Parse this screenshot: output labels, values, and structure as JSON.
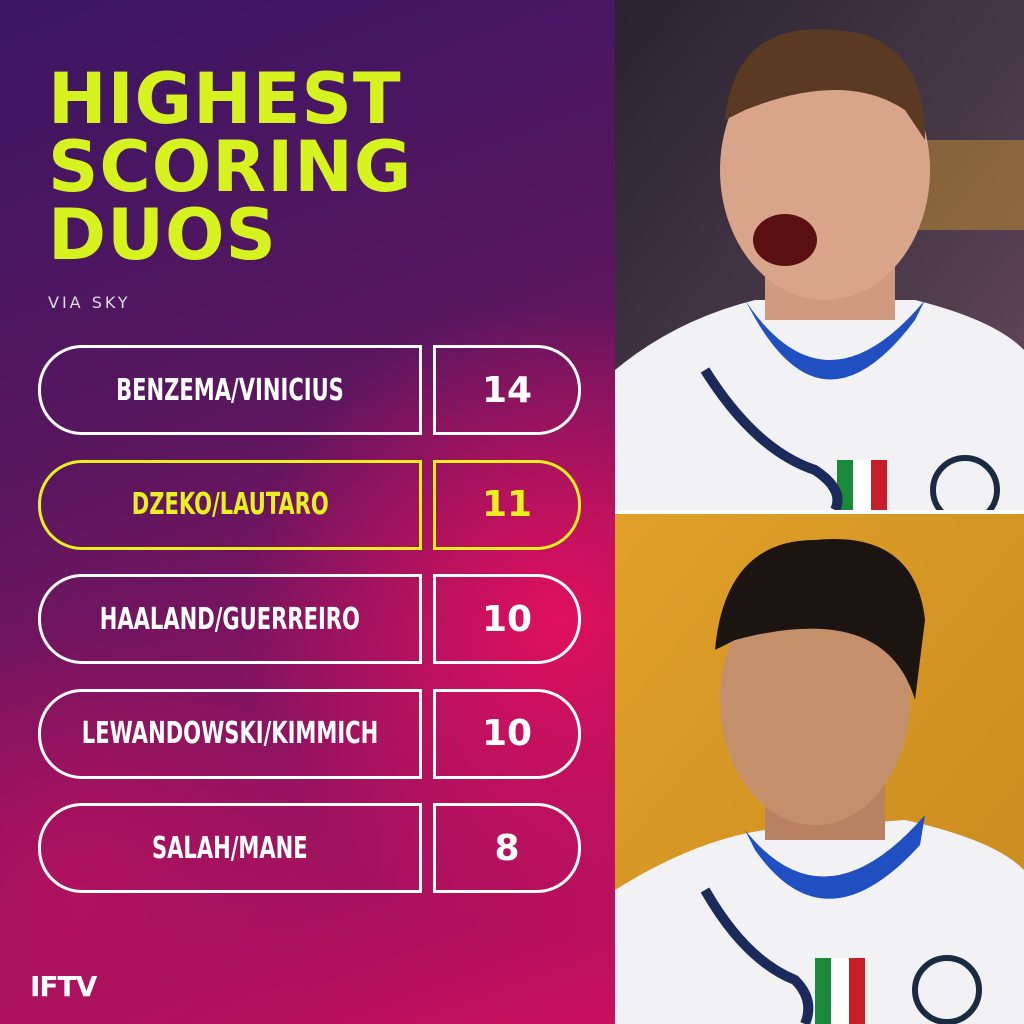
{
  "header": {
    "title_lines": [
      "HIGHEST",
      "SCORING",
      "DUOS"
    ],
    "source": "VIA SKY",
    "title_color": "#d6f21f"
  },
  "table": {
    "rows": [
      {
        "name": "BENZEMA/VINICIUS",
        "goals": 14,
        "color": "#ffffff"
      },
      {
        "name": "DZEKO/LAUTARO",
        "goals": 11,
        "color": "#e8f020"
      },
      {
        "name": "HAALAND/GUERREIRO",
        "goals": 10,
        "color": "#ffffff"
      },
      {
        "name": "LEWANDOWSKI/KIMMICH",
        "goals": 10,
        "color": "#ffffff"
      },
      {
        "name": "SALAH/MANE",
        "goals": 8,
        "color": "#ffffff"
      }
    ]
  },
  "footer": {
    "brand": "IFTV"
  }
}
